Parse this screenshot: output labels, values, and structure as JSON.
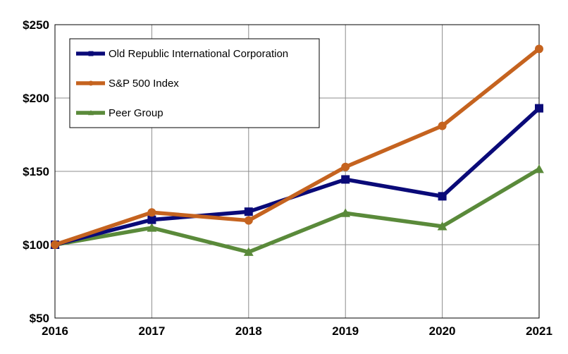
{
  "chart_data": {
    "type": "line",
    "title": "",
    "xlabel": "",
    "ylabel": "",
    "categories": [
      "2016",
      "2017",
      "2018",
      "2019",
      "2020",
      "2021"
    ],
    "ylim": [
      50,
      250
    ],
    "yticks": [
      50,
      100,
      150,
      200,
      250
    ],
    "ytick_labels": [
      "$50",
      "$100",
      "$150",
      "$200",
      "$250"
    ],
    "grid": true,
    "legend_position": "top-left",
    "series": [
      {
        "name": "Old Republic International Corporation",
        "color": "#0a0a78",
        "marker": "square",
        "values": [
          100,
          117,
          122.5,
          144.5,
          133,
          193
        ]
      },
      {
        "name": "S&P 500 Index",
        "color": "#c5631f",
        "marker": "circle",
        "values": [
          100,
          122,
          116.5,
          153,
          181,
          233.5
        ]
      },
      {
        "name": "Peer Group",
        "color": "#5a8a3a",
        "marker": "triangle",
        "values": [
          100,
          111.5,
          95,
          121.5,
          112.5,
          151.5
        ]
      }
    ]
  }
}
